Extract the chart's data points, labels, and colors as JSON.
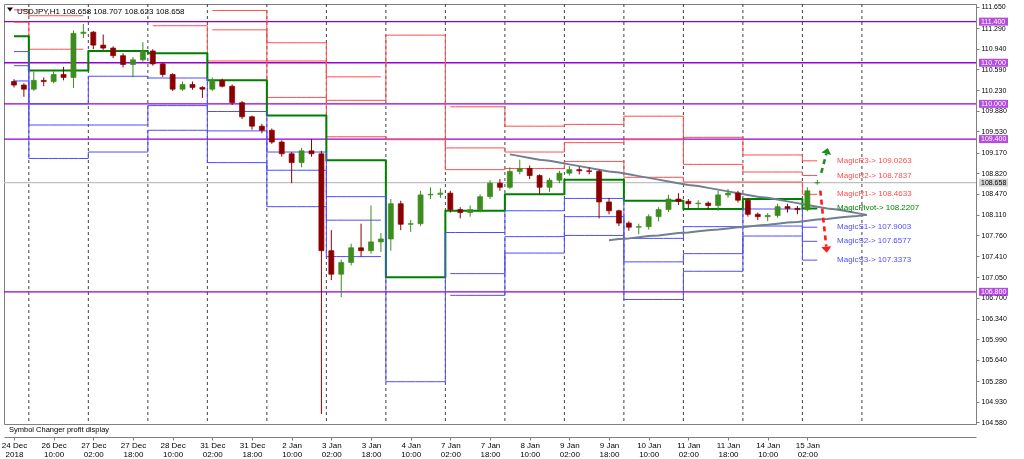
{
  "chart_data": {
    "type": "candlestick",
    "title": "USDJPY,H1 108.658 108.707 108.623 108.658",
    "categories": [
      "24 Dec 2018",
      null,
      null,
      null,
      "26 Dec 10:00",
      null,
      null,
      null,
      "27 Dec 02:00",
      null,
      null,
      null,
      "27 Dec 18:00",
      null,
      null,
      null,
      "28 Dec 10:00",
      null,
      null,
      null,
      "31 Dec 02:00",
      null,
      null,
      null,
      "31 Dec 18:00",
      null,
      null,
      null,
      "2 Jan 10:00",
      null,
      null,
      null,
      "3 Jan 02:00",
      null,
      null,
      null,
      "3 Jan 18:00",
      null,
      null,
      null,
      "4 Jan 10:00",
      null,
      null,
      null,
      "7 Jan 02:00",
      null,
      null,
      null,
      "7 Jan 18:00",
      null,
      null,
      null,
      "8 Jan 10:00",
      null,
      null,
      null,
      "9 Jan 02:00",
      null,
      null,
      null,
      "9 Jan 18:00",
      null,
      null,
      null,
      "10 Jan 10:00",
      null,
      null,
      null,
      "11 Jan 02:00",
      null,
      null,
      null,
      "11 Jan 18:00",
      null,
      null,
      null,
      "14 Jan 10:00",
      null,
      null,
      null,
      "15 Jan 02:00",
      null,
      null,
      null,
      null,
      null,
      null,
      null,
      null,
      null,
      null,
      null,
      null,
      null,
      null,
      null,
      null
    ],
    "ohlc": [
      [
        110.38,
        110.42,
        110.28,
        110.32
      ],
      [
        110.32,
        110.35,
        110.12,
        110.25
      ],
      [
        110.25,
        110.55,
        110.22,
        110.4
      ],
      [
        110.4,
        110.45,
        110.3,
        110.38
      ],
      [
        110.38,
        110.55,
        110.35,
        110.5
      ],
      [
        110.5,
        110.63,
        110.4,
        110.45
      ],
      [
        110.45,
        111.25,
        110.27,
        111.2
      ],
      [
        111.2,
        111.36,
        111.12,
        111.22
      ],
      [
        111.22,
        111.24,
        110.93,
        111.0
      ],
      [
        111.0,
        111.18,
        110.92,
        110.95
      ],
      [
        110.95,
        110.98,
        110.78,
        110.82
      ],
      [
        110.82,
        110.86,
        110.62,
        110.67
      ],
      [
        110.67,
        110.8,
        110.45,
        110.75
      ],
      [
        110.75,
        111.05,
        110.72,
        110.9
      ],
      [
        110.9,
        110.93,
        110.65,
        110.68
      ],
      [
        110.68,
        110.7,
        110.46,
        110.5
      ],
      [
        110.5,
        110.52,
        110.22,
        110.25
      ],
      [
        110.25,
        110.38,
        110.22,
        110.33
      ],
      [
        110.33,
        110.38,
        110.24,
        110.28
      ],
      [
        110.28,
        110.3,
        110.1,
        110.25
      ],
      [
        110.25,
        110.45,
        110.22,
        110.4
      ],
      [
        110.4,
        110.43,
        110.28,
        110.3
      ],
      [
        110.3,
        110.33,
        109.98,
        110.02
      ],
      [
        110.02,
        110.05,
        109.74,
        109.78
      ],
      [
        109.78,
        109.8,
        109.56,
        109.62
      ],
      [
        109.62,
        109.66,
        109.5,
        109.55
      ],
      [
        109.55,
        109.58,
        109.32,
        109.35
      ],
      [
        109.35,
        109.38,
        109.1,
        109.15
      ],
      [
        109.15,
        109.18,
        108.65,
        109.0
      ],
      [
        109.0,
        109.25,
        108.92,
        109.2
      ],
      [
        109.2,
        109.4,
        109.1,
        109.15
      ],
      [
        109.15,
        109.2,
        104.72,
        107.5
      ],
      [
        107.5,
        107.85,
        107.0,
        107.1
      ],
      [
        107.1,
        107.35,
        106.71,
        107.3
      ],
      [
        107.3,
        107.62,
        107.25,
        107.55
      ],
      [
        107.55,
        107.96,
        107.4,
        107.5
      ],
      [
        107.5,
        108.27,
        107.45,
        107.65
      ],
      [
        107.65,
        107.8,
        107.48,
        107.7
      ],
      [
        107.7,
        108.38,
        107.5,
        108.3
      ],
      [
        108.3,
        108.35,
        107.85,
        107.95
      ],
      [
        107.95,
        108.02,
        107.82,
        107.96
      ],
      [
        107.96,
        108.52,
        107.92,
        108.45
      ],
      [
        108.45,
        108.58,
        108.38,
        108.46
      ],
      [
        108.46,
        108.56,
        108.4,
        108.48
      ],
      [
        108.48,
        108.52,
        108.15,
        108.2
      ],
      [
        108.2,
        108.24,
        108.05,
        108.15
      ],
      [
        108.15,
        108.27,
        108.08,
        108.2
      ],
      [
        108.2,
        108.46,
        108.15,
        108.42
      ],
      [
        108.42,
        108.7,
        108.38,
        108.65
      ],
      [
        108.65,
        108.72,
        108.52,
        108.58
      ],
      [
        108.58,
        108.92,
        108.55,
        108.85
      ],
      [
        108.85,
        109.05,
        108.8,
        108.9
      ],
      [
        108.9,
        108.95,
        108.72,
        108.78
      ],
      [
        108.78,
        108.8,
        108.46,
        108.58
      ],
      [
        108.58,
        108.74,
        108.5,
        108.7
      ],
      [
        108.7,
        108.86,
        108.65,
        108.82
      ],
      [
        108.82,
        108.94,
        108.78,
        108.88
      ],
      [
        108.88,
        108.93,
        108.8,
        108.86
      ],
      [
        108.86,
        108.92,
        108.8,
        108.85
      ],
      [
        108.85,
        108.88,
        108.05,
        108.33
      ],
      [
        108.33,
        108.4,
        108.12,
        108.18
      ],
      [
        108.18,
        108.2,
        107.92,
        107.97
      ],
      [
        107.97,
        108.0,
        107.84,
        107.9
      ],
      [
        107.9,
        107.96,
        107.78,
        107.91
      ],
      [
        107.91,
        108.12,
        107.86,
        108.08
      ],
      [
        108.08,
        108.24,
        108.0,
        108.2
      ],
      [
        108.2,
        108.45,
        108.16,
        108.38
      ],
      [
        108.38,
        108.48,
        108.28,
        108.34
      ],
      [
        108.34,
        108.38,
        108.22,
        108.3
      ],
      [
        108.3,
        108.36,
        108.22,
        108.31
      ],
      [
        108.31,
        108.34,
        108.2,
        108.27
      ],
      [
        108.27,
        108.52,
        108.18,
        108.45
      ],
      [
        108.45,
        108.55,
        108.4,
        108.48
      ],
      [
        108.48,
        108.52,
        108.32,
        108.36
      ],
      [
        108.36,
        108.4,
        108.08,
        108.12
      ],
      [
        108.12,
        108.15,
        108.02,
        108.08
      ],
      [
        108.08,
        108.14,
        108.0,
        108.1
      ],
      [
        108.1,
        108.3,
        108.06,
        108.25
      ],
      [
        108.25,
        108.3,
        108.15,
        108.22
      ],
      [
        108.22,
        108.26,
        108.12,
        108.2
      ],
      [
        108.2,
        108.58,
        108.17,
        108.52
      ],
      [
        108.658,
        108.707,
        108.623,
        108.658
      ],
      null,
      null,
      null,
      null,
      null,
      null,
      null,
      null,
      null,
      null,
      null,
      null,
      null,
      null,
      null
    ],
    "colors": [
      "#8b0000",
      "#8b0000",
      "#3c8c1e",
      "#8b0000",
      "#3c8c1e",
      "#8b0000",
      "#3c8c1e",
      "#3c8c1e",
      "#8b0000",
      "#8b0000",
      "#8b0000",
      "#8b0000",
      "#3c8c1e",
      "#3c8c1e",
      "#8b0000",
      "#8b0000",
      "#8b0000",
      "#3c8c1e",
      "#8b0000",
      "#8b0000",
      "#3c8c1e",
      "#8b0000",
      "#8b0000",
      "#8b0000",
      "#8b0000",
      "#8b0000",
      "#8b0000",
      "#8b0000",
      "#8b0000",
      "#3c8c1e",
      "#8b0000",
      "#8b0000",
      "#8b0000",
      "#3c8c1e",
      "#3c8c1e",
      "#8b0000",
      "#3c8c1e",
      "#3c8c1e",
      "#3c8c1e",
      "#8b0000",
      "#3c8c1e",
      "#3c8c1e",
      "#3c8c1e",
      "#3c8c1e",
      "#8b0000",
      "#8b0000",
      "#3c8c1e",
      "#3c8c1e",
      "#3c8c1e",
      "#8b0000",
      "#3c8c1e",
      "#3c8c1e",
      "#8b0000",
      "#8b0000",
      "#3c8c1e",
      "#3c8c1e",
      "#3c8c1e",
      "#8b0000",
      "#8b0000",
      "#8b0000",
      "#8b0000",
      "#8b0000",
      "#8b0000",
      "#3c8c1e",
      "#3c8c1e",
      "#3c8c1e",
      "#3c8c1e",
      "#8b0000",
      "#8b0000",
      "#3c8c1e",
      "#8b0000",
      "#3c8c1e",
      "#3c8c1e",
      "#8b0000",
      "#8b0000",
      "#8b0000",
      "#3c8c1e",
      "#3c8c1e",
      "#8b0000",
      "#8b0000",
      "#3c8c1e",
      "#3c8c1e",
      null,
      null,
      null,
      null,
      null,
      null,
      null,
      null,
      null,
      null,
      null,
      null,
      null,
      null,
      null
    ],
    "series": [
      {
        "type": "step",
        "color": "#ff4d4d",
        "values": [
          null,
          null,
          null,
          null,
          null,
          null,
          null,
          null,
          null,
          null,
          null,
          null,
          null,
          null,
          null,
          null,
          null,
          null,
          null,
          null,
          111.59,
          111.59,
          111.59,
          111.59,
          111.59,
          111.59,
          111.04,
          111.04,
          111.04,
          111.04,
          111.04,
          111.04,
          110.46,
          110.46,
          110.46,
          110.46,
          110.46,
          110.46,
          null,
          null,
          null,
          null,
          null,
          null,
          109.95,
          109.95,
          109.95,
          109.95,
          109.95,
          109.95,
          109.62,
          109.62,
          109.62,
          109.62,
          109.62,
          109.62,
          109.65,
          109.65,
          109.65,
          109.65,
          109.65,
          109.65,
          109.79,
          109.79,
          109.79,
          109.79,
          109.79,
          109.79,
          109.43,
          109.43,
          109.43,
          109.43,
          109.43,
          109.43,
          109.13,
          109.13,
          109.13,
          109.13,
          109.13,
          109.13,
          109.03,
          109.03,
          null,
          null,
          null,
          null,
          null,
          null,
          null,
          null,
          null,
          null,
          null,
          null,
          null,
          null,
          null
        ]
      },
      {
        "type": "step",
        "color": "#ff4d4d",
        "values": [
          111.6,
          111.6,
          111.5,
          111.5,
          111.5,
          111.5,
          111.5,
          111.5,
          null,
          null,
          null,
          null,
          null,
          null,
          null,
          null,
          null,
          null,
          null,
          null,
          111.26,
          111.26,
          111.26,
          111.26,
          111.26,
          111.26,
          110.73,
          110.73,
          110.73,
          110.73,
          110.73,
          110.73,
          110.06,
          110.06,
          110.06,
          110.06,
          110.06,
          110.06,
          111.17,
          111.17,
          111.17,
          111.17,
          111.17,
          111.17,
          109.25,
          109.25,
          109.25,
          109.25,
          109.25,
          109.25,
          109.18,
          109.18,
          109.18,
          109.18,
          109.18,
          109.18,
          109.34,
          109.34,
          109.34,
          109.34,
          109.34,
          109.34,
          109.39,
          109.39,
          109.39,
          109.39,
          109.39,
          109.39,
          108.97,
          108.97,
          108.97,
          108.97,
          108.97,
          108.97,
          108.84,
          108.84,
          108.84,
          108.84,
          108.84,
          108.84,
          108.78,
          108.78,
          null,
          null,
          null,
          null,
          null,
          null,
          null,
          null,
          null,
          null,
          null,
          null,
          null,
          null,
          null
        ]
      },
      {
        "type": "step",
        "color": "#ff4d4d",
        "values": [
          111.39,
          111.39,
          110.93,
          110.93,
          110.93,
          110.93,
          110.93,
          110.93,
          null,
          null,
          null,
          null,
          null,
          null,
          111.33,
          111.33,
          111.33,
          111.33,
          111.33,
          111.33,
          110.73,
          110.73,
          110.73,
          110.73,
          110.73,
          110.73,
          110.11,
          110.11,
          110.11,
          110.11,
          110.11,
          110.11,
          109.44,
          109.44,
          109.44,
          109.44,
          109.44,
          109.44,
          109.39,
          109.39,
          109.39,
          109.39,
          109.39,
          109.39,
          108.88,
          108.88,
          108.88,
          108.88,
          108.88,
          108.88,
          108.9,
          108.9,
          108.9,
          108.9,
          108.9,
          108.9,
          109.02,
          109.02,
          109.02,
          109.02,
          109.02,
          109.02,
          108.75,
          108.75,
          108.75,
          108.75,
          108.75,
          108.75,
          108.67,
          108.67,
          108.67,
          108.67,
          108.67,
          108.67,
          108.67,
          108.67,
          108.67,
          108.67,
          108.67,
          108.67,
          108.46,
          108.46,
          null,
          null,
          null,
          null,
          null,
          null,
          null,
          null,
          null,
          null,
          null,
          null,
          null,
          null,
          null
        ]
      },
      {
        "type": "step",
        "color": "#008000",
        "values": [
          111.15,
          111.15,
          110.57,
          110.57,
          110.57,
          110.57,
          110.57,
          110.57,
          110.9,
          110.9,
          110.9,
          110.9,
          110.9,
          110.9,
          110.86,
          110.86,
          110.86,
          110.86,
          110.86,
          110.86,
          110.4,
          110.4,
          110.4,
          110.4,
          110.4,
          110.4,
          109.8,
          109.8,
          109.8,
          109.8,
          109.8,
          109.8,
          109.04,
          109.04,
          109.04,
          109.04,
          109.04,
          109.04,
          107.05,
          107.05,
          107.05,
          107.05,
          107.05,
          107.05,
          108.18,
          108.18,
          108.18,
          108.18,
          108.18,
          108.18,
          108.46,
          108.46,
          108.46,
          108.46,
          108.46,
          108.46,
          108.71,
          108.71,
          108.71,
          108.71,
          108.71,
          108.71,
          108.35,
          108.35,
          108.35,
          108.35,
          108.35,
          108.35,
          108.21,
          108.21,
          108.21,
          108.21,
          108.21,
          108.21,
          108.38,
          108.38,
          108.38,
          108.38,
          108.38,
          108.38,
          108.22,
          108.22,
          null,
          null,
          null,
          null,
          null,
          null,
          null,
          null,
          null,
          null,
          null,
          null,
          null,
          null,
          null
        ]
      },
      {
        "type": "step",
        "color": "#4d4dff",
        "values": [
          110.89,
          110.89,
          110.0,
          110.0,
          110.0,
          110.0,
          110.0,
          110.0,
          110.47,
          110.47,
          110.47,
          110.47,
          110.47,
          110.47,
          110.44,
          110.44,
          110.44,
          110.44,
          110.44,
          110.44,
          109.87,
          109.87,
          109.87,
          109.87,
          109.87,
          109.87,
          109.18,
          109.18,
          109.18,
          109.18,
          109.18,
          109.18,
          108.42,
          108.42,
          108.42,
          108.42,
          108.42,
          108.42,
          105.27,
          105.27,
          105.27,
          105.27,
          105.27,
          105.27,
          107.81,
          107.81,
          107.81,
          107.81,
          107.81,
          107.81,
          108.18,
          108.18,
          108.18,
          108.18,
          108.18,
          108.18,
          108.39,
          108.39,
          108.39,
          108.39,
          108.39,
          108.39,
          107.71,
          107.71,
          107.71,
          107.71,
          107.71,
          107.71,
          107.91,
          107.91,
          107.91,
          107.91,
          107.91,
          107.91,
          108.21,
          108.21,
          108.21,
          108.21,
          108.21,
          108.21,
          107.9,
          107.9,
          null,
          null,
          null,
          null,
          null,
          null,
          null,
          null,
          null,
          null,
          null,
          null,
          null,
          null,
          null
        ]
      },
      {
        "type": "step",
        "color": "#4d4dff",
        "values": [
          110.65,
          110.65,
          109.64,
          109.64,
          109.64,
          109.64,
          109.64,
          109.64,
          109.64,
          109.64,
          109.64,
          109.64,
          109.64,
          109.64,
          109.97,
          109.97,
          109.97,
          109.97,
          109.97,
          109.97,
          109.54,
          109.54,
          109.54,
          109.54,
          109.54,
          109.54,
          108.87,
          108.87,
          108.87,
          108.87,
          108.87,
          108.87,
          108.02,
          108.02,
          108.02,
          108.02,
          108.02,
          108.02,
          null,
          null,
          null,
          null,
          null,
          null,
          107.11,
          107.11,
          107.11,
          107.11,
          107.11,
          107.11,
          107.74,
          107.74,
          107.74,
          107.74,
          107.74,
          107.74,
          108.08,
          108.08,
          108.08,
          108.08,
          108.08,
          108.08,
          107.31,
          107.31,
          107.31,
          107.31,
          107.31,
          107.31,
          107.45,
          107.45,
          107.45,
          107.45,
          107.45,
          107.45,
          107.92,
          107.92,
          107.92,
          107.92,
          107.92,
          107.92,
          107.66,
          107.66,
          null,
          null,
          null,
          null,
          null,
          null,
          null,
          null,
          null,
          null,
          null,
          null,
          null,
          null,
          null
        ]
      },
      {
        "type": "step",
        "color": "#4d4dff",
        "values": [
          110.39,
          110.39,
          109.07,
          109.07,
          109.07,
          109.07,
          109.07,
          109.07,
          109.18,
          109.18,
          109.18,
          109.18,
          109.18,
          109.18,
          109.55,
          109.55,
          109.55,
          109.55,
          109.55,
          109.55,
          109.0,
          109.0,
          109.0,
          109.0,
          109.0,
          109.0,
          108.25,
          108.25,
          108.25,
          108.25,
          108.25,
          108.25,
          107.4,
          107.4,
          107.4,
          107.4,
          107.4,
          107.4,
          null,
          null,
          null,
          null,
          null,
          null,
          106.74,
          106.74,
          106.74,
          106.74,
          106.74,
          106.74,
          107.46,
          107.46,
          107.46,
          107.46,
          107.46,
          107.46,
          107.76,
          107.76,
          107.76,
          107.76,
          107.76,
          107.76,
          106.67,
          106.67,
          106.67,
          106.67,
          106.67,
          106.67,
          107.15,
          107.15,
          107.15,
          107.15,
          107.15,
          107.15,
          107.75,
          107.75,
          107.75,
          107.75,
          107.75,
          107.75,
          107.34,
          107.34,
          null,
          null,
          null,
          null,
          null,
          null,
          null,
          null,
          null,
          null,
          null,
          null,
          null,
          null,
          null
        ]
      },
      {
        "type": "line",
        "color": "#708090",
        "values": [
          null,
          null,
          null,
          null,
          null,
          null,
          null,
          null,
          null,
          null,
          null,
          null,
          null,
          null,
          null,
          null,
          null,
          null,
          null,
          null,
          null,
          null,
          null,
          null,
          null,
          null,
          null,
          null,
          null,
          null,
          null,
          null,
          null,
          null,
          null,
          null,
          null,
          null,
          null,
          null,
          null,
          null,
          null,
          null,
          null,
          null,
          null,
          null,
          null,
          null,
          109.14,
          109.11,
          109.08,
          109.05,
          109.03,
          109.0,
          108.97,
          108.94,
          108.91,
          108.88,
          108.85,
          108.83,
          108.8,
          108.77,
          108.74,
          108.71,
          108.68,
          108.65,
          108.62,
          108.6,
          108.57,
          108.54,
          108.51,
          108.48,
          108.45,
          108.42,
          108.4,
          108.37,
          108.34,
          108.31,
          108.28,
          108.25,
          108.22,
          108.2,
          108.17,
          108.14,
          108.11,
          null,
          null,
          null,
          null,
          null,
          null,
          null,
          null,
          null,
          null
        ]
      },
      {
        "type": "line",
        "color": "#708090",
        "values": [
          null,
          null,
          null,
          null,
          null,
          null,
          null,
          null,
          null,
          null,
          null,
          null,
          null,
          null,
          null,
          null,
          null,
          null,
          null,
          null,
          null,
          null,
          null,
          null,
          null,
          null,
          null,
          null,
          null,
          null,
          null,
          null,
          null,
          null,
          null,
          null,
          null,
          null,
          null,
          null,
          null,
          null,
          null,
          null,
          null,
          null,
          null,
          null,
          null,
          null,
          null,
          null,
          null,
          null,
          null,
          null,
          null,
          null,
          null,
          null,
          107.68,
          107.7,
          107.71,
          107.73,
          107.75,
          107.76,
          107.78,
          107.8,
          107.81,
          107.83,
          107.85,
          107.86,
          107.88,
          107.9,
          107.91,
          107.93,
          107.94,
          107.96,
          107.98,
          107.99,
          108.01,
          108.03,
          108.04,
          108.06,
          108.08,
          108.09,
          108.11,
          null,
          null,
          null,
          null,
          null,
          null,
          null,
          null,
          null,
          null
        ]
      }
    ],
    "ylim": [
      104.55,
      111.7
    ],
    "yticks": [
      {
        "value": 111.65,
        "label": "111.650"
      },
      {
        "value": 111.29,
        "label": "111.290"
      },
      {
        "value": 110.94,
        "label": "110.940"
      },
      {
        "value": 110.59,
        "label": "110.590"
      },
      {
        "value": 110.23,
        "label": "110.230"
      },
      {
        "value": 109.88,
        "label": "109.880"
      },
      {
        "value": 109.53,
        "label": "109.530"
      },
      {
        "value": 109.17,
        "label": "109.170"
      },
      {
        "value": 108.82,
        "label": "108.820"
      },
      {
        "value": 108.47,
        "label": "108.470"
      },
      {
        "value": 108.11,
        "label": "108.110"
      },
      {
        "value": 107.76,
        "label": "107.760"
      },
      {
        "value": 107.41,
        "label": "107.410"
      },
      {
        "value": 107.05,
        "label": "107.050"
      },
      {
        "value": 106.7,
        "label": "106.700"
      },
      {
        "value": 106.34,
        "label": "106.340"
      },
      {
        "value": 105.99,
        "label": "105.990"
      },
      {
        "value": 105.64,
        "label": "105.640"
      },
      {
        "value": 105.28,
        "label": "105.280"
      },
      {
        "value": 104.93,
        "label": "104.930"
      },
      {
        "value": 104.58,
        "label": "104.580"
      }
    ],
    "ref_lines": [
      {
        "axis": "y",
        "value": 111.4,
        "label": "111.400",
        "color": "#9400d3"
      },
      {
        "axis": "y",
        "value": 110.7,
        "label": "110.700",
        "color": "#9400d3"
      },
      {
        "axis": "y",
        "value": 110.0,
        "label": "110.000",
        "color": "#9400d3"
      },
      {
        "axis": "y",
        "value": 109.4,
        "label": "109.400",
        "color": "#9400d3"
      },
      {
        "axis": "y",
        "value": 106.8,
        "label": "106.800",
        "color": "#9400d3"
      },
      {
        "axis": "y",
        "value": 108.658,
        "label": "108.658",
        "color": "#c0c0c0"
      }
    ],
    "annotations": [
      "MagicR3-> 109.0263",
      "MagicR2-> 108.7837",
      "MagicR1-> 108.4633",
      "MagicPivot-> 108.2207",
      "MagicS1-> 107.9003",
      "MagicS2-> 107.6577",
      "MagicS3-> 107.3373",
      "Symbol Changer profit display"
    ]
  }
}
